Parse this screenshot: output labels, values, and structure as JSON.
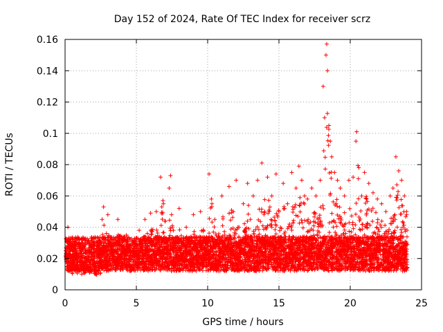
{
  "chart_data": {
    "type": "scatter",
    "title": "Day 152 of 2024, Rate Of TEC Index for receiver scrz",
    "xlabel": "GPS time / hours",
    "ylabel": "ROTI / TECUs",
    "xlim": [
      0,
      25
    ],
    "ylim": [
      0,
      0.16
    ],
    "xticks": [
      0,
      5,
      10,
      15,
      20,
      25
    ],
    "xtick_labels": [
      "0",
      "5",
      "10",
      "15",
      "20",
      "25"
    ],
    "yticks": [
      0,
      0.02,
      0.04,
      0.06,
      0.08,
      0.1,
      0.12,
      0.14,
      0.16
    ],
    "ytick_labels": [
      "0",
      "0.02",
      "0.04",
      "0.06",
      "0.08",
      "0.1",
      "0.12",
      "0.14",
      "0.16"
    ],
    "grid": true,
    "marker": "+",
    "color": "#ff0000",
    "series": [
      {
        "name": "ROTI",
        "points": [
          [
            0.05,
            0.025
          ],
          [
            0.1,
            0.031
          ],
          [
            0.15,
            0.018
          ],
          [
            0.2,
            0.04
          ],
          [
            0.25,
            0.022
          ],
          [
            0.3,
            0.012
          ],
          [
            2.5,
            0.03
          ],
          [
            2.6,
            0.045
          ],
          [
            2.7,
            0.053
          ],
          [
            2.8,
            0.02
          ],
          [
            2.9,
            0.036
          ],
          [
            3.0,
            0.048
          ],
          [
            3.1,
            0.025
          ],
          [
            3.3,
            0.032
          ],
          [
            3.5,
            0.018
          ],
          [
            3.7,
            0.045
          ],
          [
            3.9,
            0.022
          ],
          [
            4.1,
            0.028
          ],
          [
            4.3,
            0.035
          ],
          [
            4.5,
            0.015
          ],
          [
            4.8,
            0.03
          ],
          [
            5.0,
            0.025
          ],
          [
            5.2,
            0.038
          ],
          [
            5.4,
            0.02
          ],
          [
            5.6,
            0.045
          ],
          [
            5.8,
            0.028
          ],
          [
            6.0,
            0.049
          ],
          [
            6.2,
            0.025
          ],
          [
            6.4,
            0.05
          ],
          [
            6.6,
            0.032
          ],
          [
            6.7,
            0.072
          ],
          [
            6.9,
            0.055
          ],
          [
            7.1,
            0.03
          ],
          [
            7.3,
            0.065
          ],
          [
            7.4,
            0.073
          ],
          [
            7.6,
            0.038
          ],
          [
            7.8,
            0.025
          ],
          [
            8.0,
            0.052
          ],
          [
            8.2,
            0.03
          ],
          [
            8.5,
            0.04
          ],
          [
            8.8,
            0.022
          ],
          [
            9.0,
            0.048
          ],
          [
            9.2,
            0.028
          ],
          [
            9.5,
            0.05
          ],
          [
            9.8,
            0.032
          ],
          [
            10.0,
            0.025
          ],
          [
            10.1,
            0.074
          ],
          [
            10.3,
            0.055
          ],
          [
            10.5,
            0.045
          ],
          [
            10.8,
            0.03
          ],
          [
            11.0,
            0.06
          ],
          [
            11.2,
            0.035
          ],
          [
            11.5,
            0.066
          ],
          [
            11.8,
            0.05
          ],
          [
            12.0,
            0.07
          ],
          [
            12.2,
            0.04
          ],
          [
            12.5,
            0.055
          ],
          [
            12.8,
            0.068
          ],
          [
            13.0,
            0.045
          ],
          [
            13.2,
            0.06
          ],
          [
            13.5,
            0.07
          ],
          [
            13.8,
            0.081
          ],
          [
            14.0,
            0.05
          ],
          [
            14.2,
            0.072
          ],
          [
            14.5,
            0.06
          ],
          [
            14.8,
            0.074
          ],
          [
            15.0,
            0.05
          ],
          [
            15.3,
            0.068
          ],
          [
            15.6,
            0.055
          ],
          [
            15.9,
            0.075
          ],
          [
            16.2,
            0.065
          ],
          [
            16.4,
            0.079
          ],
          [
            16.6,
            0.07
          ],
          [
            16.8,
            0.06
          ],
          [
            17.0,
            0.058
          ],
          [
            17.3,
            0.065
          ],
          [
            17.6,
            0.06
          ],
          [
            17.9,
            0.07
          ],
          [
            18.1,
            0.13
          ],
          [
            18.2,
            0.11
          ],
          [
            18.3,
            0.15
          ],
          [
            18.35,
            0.157
          ],
          [
            18.4,
            0.14
          ],
          [
            18.5,
            0.105
          ],
          [
            18.6,
            0.095
          ],
          [
            18.7,
            0.085
          ],
          [
            18.9,
            0.075
          ],
          [
            19.1,
            0.07
          ],
          [
            19.3,
            0.065
          ],
          [
            19.6,
            0.06
          ],
          [
            19.9,
            0.07
          ],
          [
            20.2,
            0.072
          ],
          [
            20.4,
            0.095
          ],
          [
            20.45,
            0.101
          ],
          [
            20.6,
            0.078
          ],
          [
            20.8,
            0.06
          ],
          [
            21.0,
            0.075
          ],
          [
            21.3,
            0.068
          ],
          [
            21.6,
            0.062
          ],
          [
            21.9,
            0.058
          ],
          [
            22.2,
            0.055
          ],
          [
            22.5,
            0.05
          ],
          [
            22.8,
            0.06
          ],
          [
            23.0,
            0.065
          ],
          [
            23.2,
            0.085
          ],
          [
            23.4,
            0.076
          ],
          [
            23.6,
            0.07
          ],
          [
            23.8,
            0.06
          ],
          [
            23.95,
            0.05
          ]
        ]
      }
    ]
  }
}
